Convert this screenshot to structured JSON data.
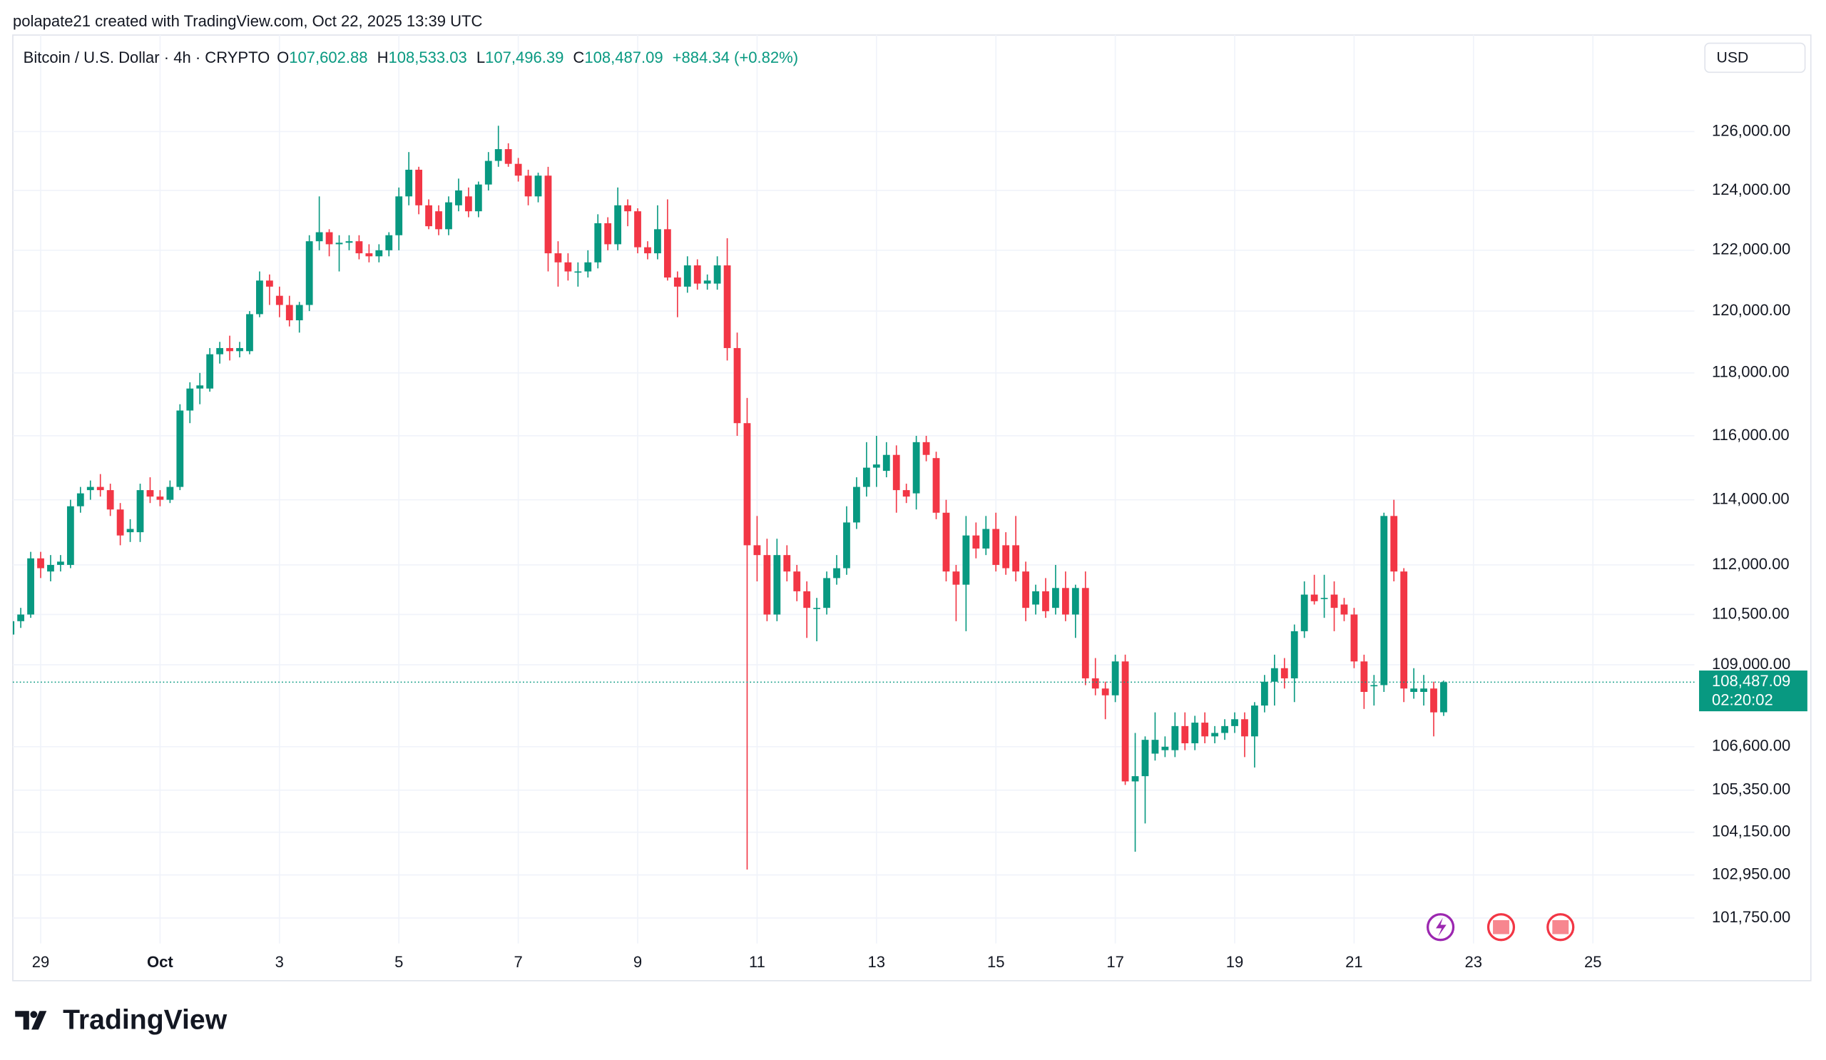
{
  "attribution": "polapate21 created with TradingView.com, Oct 22, 2025 13:39 UTC",
  "currency": "USD",
  "footer": {
    "logo": "TradingView"
  },
  "chart_data": {
    "type": "candlestick",
    "title": "Bitcoin / U.S. Dollar · 4h · CRYPTO",
    "ohlc_labels": [
      "O",
      "H",
      "L",
      "C"
    ],
    "ohlc_value_labels": [
      "107,602.88",
      "108,533.03",
      "107,496.39",
      "108,487.09"
    ],
    "change_label": "+884.34 (+0.82%)",
    "last_price_label": "108,487.09",
    "countdown": "02:20:02",
    "up_color": "#089981",
    "down_color": "#f23645",
    "log_scale": true,
    "grid": true,
    "xlim": [
      0.2,
      169.2
    ],
    "ylim": [
      101050,
      129350
    ],
    "xticks": [
      {
        "value": 3,
        "label": "29"
      },
      {
        "value": 15,
        "label": "Oct"
      },
      {
        "value": 27,
        "label": "3"
      },
      {
        "value": 39,
        "label": "5"
      },
      {
        "value": 51,
        "label": "7"
      },
      {
        "value": 63,
        "label": "9"
      },
      {
        "value": 75,
        "label": "11"
      },
      {
        "value": 87,
        "label": "13"
      },
      {
        "value": 99,
        "label": "15"
      },
      {
        "value": 111,
        "label": "17"
      },
      {
        "value": 123,
        "label": "19"
      },
      {
        "value": 135,
        "label": "21"
      },
      {
        "value": 147,
        "label": "23"
      },
      {
        "value": 159,
        "label": "25"
      }
    ],
    "yticks": [
      {
        "value": 126000,
        "label": "126,000.00"
      },
      {
        "value": 124000,
        "label": "124,000.00"
      },
      {
        "value": 122000,
        "label": "122,000.00"
      },
      {
        "value": 120000,
        "label": "120,000.00"
      },
      {
        "value": 118000,
        "label": "118,000.00"
      },
      {
        "value": 116000,
        "label": "116,000.00"
      },
      {
        "value": 114000,
        "label": "114,000.00"
      },
      {
        "value": 112000,
        "label": "112,000.00"
      },
      {
        "value": 110500,
        "label": "110,500.00"
      },
      {
        "value": 109000,
        "label": "109,000.00"
      },
      {
        "value": 106600,
        "label": "106,600.00"
      },
      {
        "value": 105350,
        "label": "105,350.00"
      },
      {
        "value": 104150,
        "label": "104,150.00"
      },
      {
        "value": 102950,
        "label": "102,950.00"
      },
      {
        "value": 101750,
        "label": "101,750.00"
      }
    ],
    "open": [
      109900,
      110300,
      110500,
      112200,
      111800,
      112000,
      112000,
      113800,
      114300,
      114400,
      114300,
      113700,
      113000,
      113000,
      114300,
      114100,
      114000,
      114400,
      116800,
      117500,
      117500,
      118600,
      118800,
      118700,
      118700,
      119900,
      121000,
      120500,
      120200,
      119700,
      120200,
      122300,
      122600,
      122200,
      122250,
      122300,
      121900,
      121800,
      122000,
      122500,
      123800,
      124700,
      123500,
      123300,
      122700,
      123500,
      123800,
      123300,
      124200,
      125000,
      125400,
      124900,
      124500,
      123800,
      124500,
      121900,
      121600,
      121300,
      121300,
      121600,
      122900,
      122200,
      123500,
      123300,
      122100,
      121900,
      122700,
      121100,
      120800,
      121500,
      120900,
      120900,
      121500,
      118800,
      116400,
      112600,
      112300,
      110500,
      112300,
      111800,
      111200,
      110700,
      110700,
      111600,
      111900,
      113300,
      114400,
      115000,
      114900,
      115400,
      114300,
      114200,
      115800,
      115300,
      113600,
      111800,
      111400,
      112900,
      112500,
      113100,
      112600,
      112600,
      111800,
      110800,
      111200,
      110700,
      111300,
      110500,
      111300,
      108600,
      108300,
      108100,
      109100,
      105600,
      105750,
      106400,
      106500,
      106500,
      107200,
      106700,
      107300,
      106900,
      107000,
      107200,
      107400,
      106900,
      107800,
      108500,
      108900,
      108600,
      110000,
      111100,
      111000,
      111100,
      110800,
      110500,
      109100,
      108400,
      108400,
      113500,
      111800,
      108200,
      108200,
      108300,
      107602.88
    ],
    "high": [
      110500,
      110700,
      112400,
      112400,
      112300,
      112300,
      114000,
      114400,
      114600,
      114800,
      114500,
      113900,
      113400,
      114500,
      114700,
      114300,
      114600,
      117000,
      117700,
      118000,
      118800,
      119000,
      119200,
      119000,
      120000,
      121300,
      121200,
      120800,
      120500,
      120300,
      122500,
      123800,
      122700,
      122500,
      122500,
      122500,
      122200,
      122200,
      122600,
      124100,
      125300,
      124800,
      123700,
      123500,
      123800,
      124400,
      124100,
      124300,
      125300,
      126200,
      125600,
      125100,
      124700,
      124600,
      124800,
      122300,
      121900,
      121600,
      122000,
      123200,
      123100,
      124100,
      123700,
      123400,
      122300,
      123500,
      123700,
      121300,
      121800,
      121700,
      121200,
      121800,
      122400,
      119300,
      117200,
      113500,
      112800,
      112800,
      112600,
      112000,
      111500,
      111000,
      111800,
      112300,
      113800,
      114700,
      115800,
      116000,
      115800,
      115700,
      114500,
      116000,
      116000,
      115500,
      114000,
      112000,
      113500,
      113300,
      113500,
      113600,
      113000,
      113500,
      112100,
      111400,
      111600,
      112000,
      111800,
      111400,
      111800,
      109200,
      108500,
      109300,
      109300,
      107000,
      106900,
      107600,
      106900,
      107600,
      107600,
      107500,
      107600,
      107200,
      107400,
      107600,
      107600,
      107900,
      108700,
      109300,
      109200,
      110200,
      111500,
      111700,
      111700,
      111500,
      111000,
      110700,
      109300,
      108700,
      113600,
      114000,
      111900,
      108900,
      108700,
      108500,
      108533.03
    ],
    "low": [
      109000,
      110100,
      110400,
      111600,
      111500,
      111800,
      111900,
      113600,
      114000,
      114100,
      113500,
      112600,
      112700,
      112700,
      113900,
      113800,
      113900,
      114300,
      116400,
      117000,
      117400,
      118300,
      118400,
      118500,
      118600,
      119800,
      120200,
      119800,
      119500,
      119300,
      120000,
      122000,
      121800,
      121300,
      122000,
      121700,
      121600,
      121600,
      121800,
      122000,
      123500,
      123200,
      122700,
      122500,
      122500,
      123300,
      123100,
      123100,
      124000,
      124800,
      124800,
      124300,
      123500,
      123600,
      121300,
      120800,
      121000,
      120800,
      121100,
      121400,
      122000,
      122000,
      122800,
      121900,
      121700,
      121700,
      121000,
      119800,
      120600,
      120700,
      120700,
      120700,
      118400,
      116000,
      103100,
      111500,
      110300,
      110300,
      111500,
      110900,
      109800,
      109700,
      110500,
      111400,
      111700,
      113100,
      114100,
      114400,
      114700,
      113600,
      113900,
      113700,
      115200,
      113400,
      111500,
      110300,
      110000,
      112200,
      112300,
      111800,
      111700,
      111500,
      110300,
      110500,
      110400,
      110500,
      110300,
      109800,
      108400,
      108100,
      107400,
      107900,
      105500,
      103600,
      104400,
      106200,
      106300,
      106300,
      106500,
      106500,
      106700,
      106700,
      106800,
      107000,
      106300,
      106000,
      107600,
      107800,
      108300,
      107900,
      109800,
      110800,
      110400,
      110000,
      110300,
      108900,
      107700,
      107800,
      108200,
      111500,
      107900,
      108000,
      107800,
      106900,
      107496.39
    ],
    "close": [
      110300,
      110500,
      112200,
      111900,
      112000,
      112100,
      113800,
      114200,
      114400,
      114300,
      113700,
      112900,
      113100,
      114300,
      114100,
      114000,
      114400,
      116800,
      117500,
      117600,
      118600,
      118800,
      118700,
      118800,
      119900,
      121000,
      120800,
      120200,
      119700,
      120200,
      122300,
      122600,
      122200,
      122250,
      122300,
      121900,
      121800,
      122000,
      122500,
      123800,
      124700,
      123500,
      122800,
      122700,
      123600,
      124000,
      123300,
      124200,
      125000,
      125400,
      124900,
      124500,
      123800,
      124500,
      121900,
      121600,
      121300,
      121300,
      121600,
      122900,
      122200,
      123500,
      123300,
      122100,
      121900,
      122700,
      121100,
      120800,
      121500,
      120900,
      121000,
      121500,
      118800,
      116400,
      112600,
      112300,
      110500,
      112300,
      111800,
      111200,
      110700,
      110700,
      111600,
      111900,
      113300,
      114400,
      115000,
      115100,
      115400,
      114300,
      114100,
      115800,
      115400,
      113600,
      111800,
      111400,
      112900,
      112500,
      113100,
      112000,
      111900,
      111800,
      110700,
      111200,
      110600,
      111300,
      110500,
      111300,
      108600,
      108300,
      108100,
      109100,
      105600,
      105750,
      106800,
      106800,
      106600,
      107200,
      106700,
      107300,
      106900,
      107000,
      107200,
      107400,
      106900,
      107800,
      108500,
      108900,
      108600,
      110000,
      111100,
      110900,
      111000,
      110700,
      110500,
      109100,
      108200,
      108400,
      113500,
      111800,
      108300,
      108300,
      108300,
      107600,
      108487.09
    ]
  }
}
